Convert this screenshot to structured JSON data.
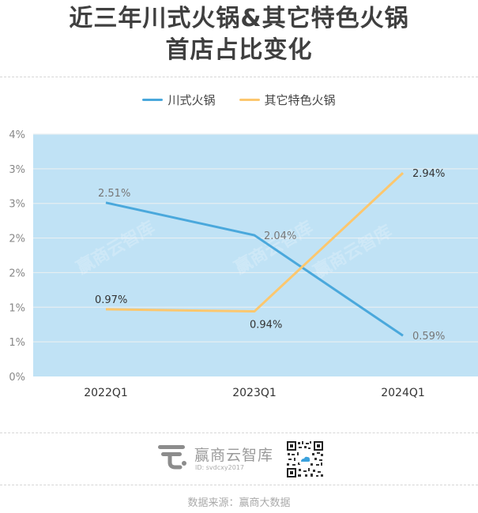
{
  "title": {
    "line1": "近三年川式火锅&其它特色火锅",
    "line2": "首店占比变化"
  },
  "legend": [
    {
      "label": "川式火锅",
      "color": "#4aa8dc"
    },
    {
      "label": "其它特色火锅",
      "color": "#fcc76e"
    }
  ],
  "colors": {
    "plot_bg": "#c0e2f5",
    "grid": "#e6eef2",
    "series1": "#4aa8dc",
    "series2": "#fcc76e"
  },
  "chart_data": {
    "type": "line",
    "title": "近三年川式火锅&其它特色火锅首店占比变化",
    "categories": [
      "2022Q1",
      "2023Q1",
      "2024Q1"
    ],
    "series": [
      {
        "name": "川式火锅",
        "values": [
          2.51,
          2.04,
          0.59
        ],
        "labels": [
          "2.51%",
          "2.04%",
          "0.59%"
        ]
      },
      {
        "name": "其它特色火锅",
        "values": [
          0.97,
          0.94,
          2.94
        ],
        "labels": [
          "0.97%",
          "0.94%",
          "2.94%"
        ]
      }
    ],
    "y_ticks": [
      "0%",
      "1%",
      "1%",
      "2%",
      "2%",
      "3%",
      "3%",
      "4%"
    ],
    "ylim": [
      0,
      3.5
    ],
    "xlabel": "",
    "ylabel": "",
    "grid": true,
    "legend_position": "top"
  },
  "footer": {
    "brand": "赢商云智库",
    "id": "ID: svdcxy2017",
    "source": "数据来源：赢商大数据"
  },
  "watermark": "赢商云智库"
}
